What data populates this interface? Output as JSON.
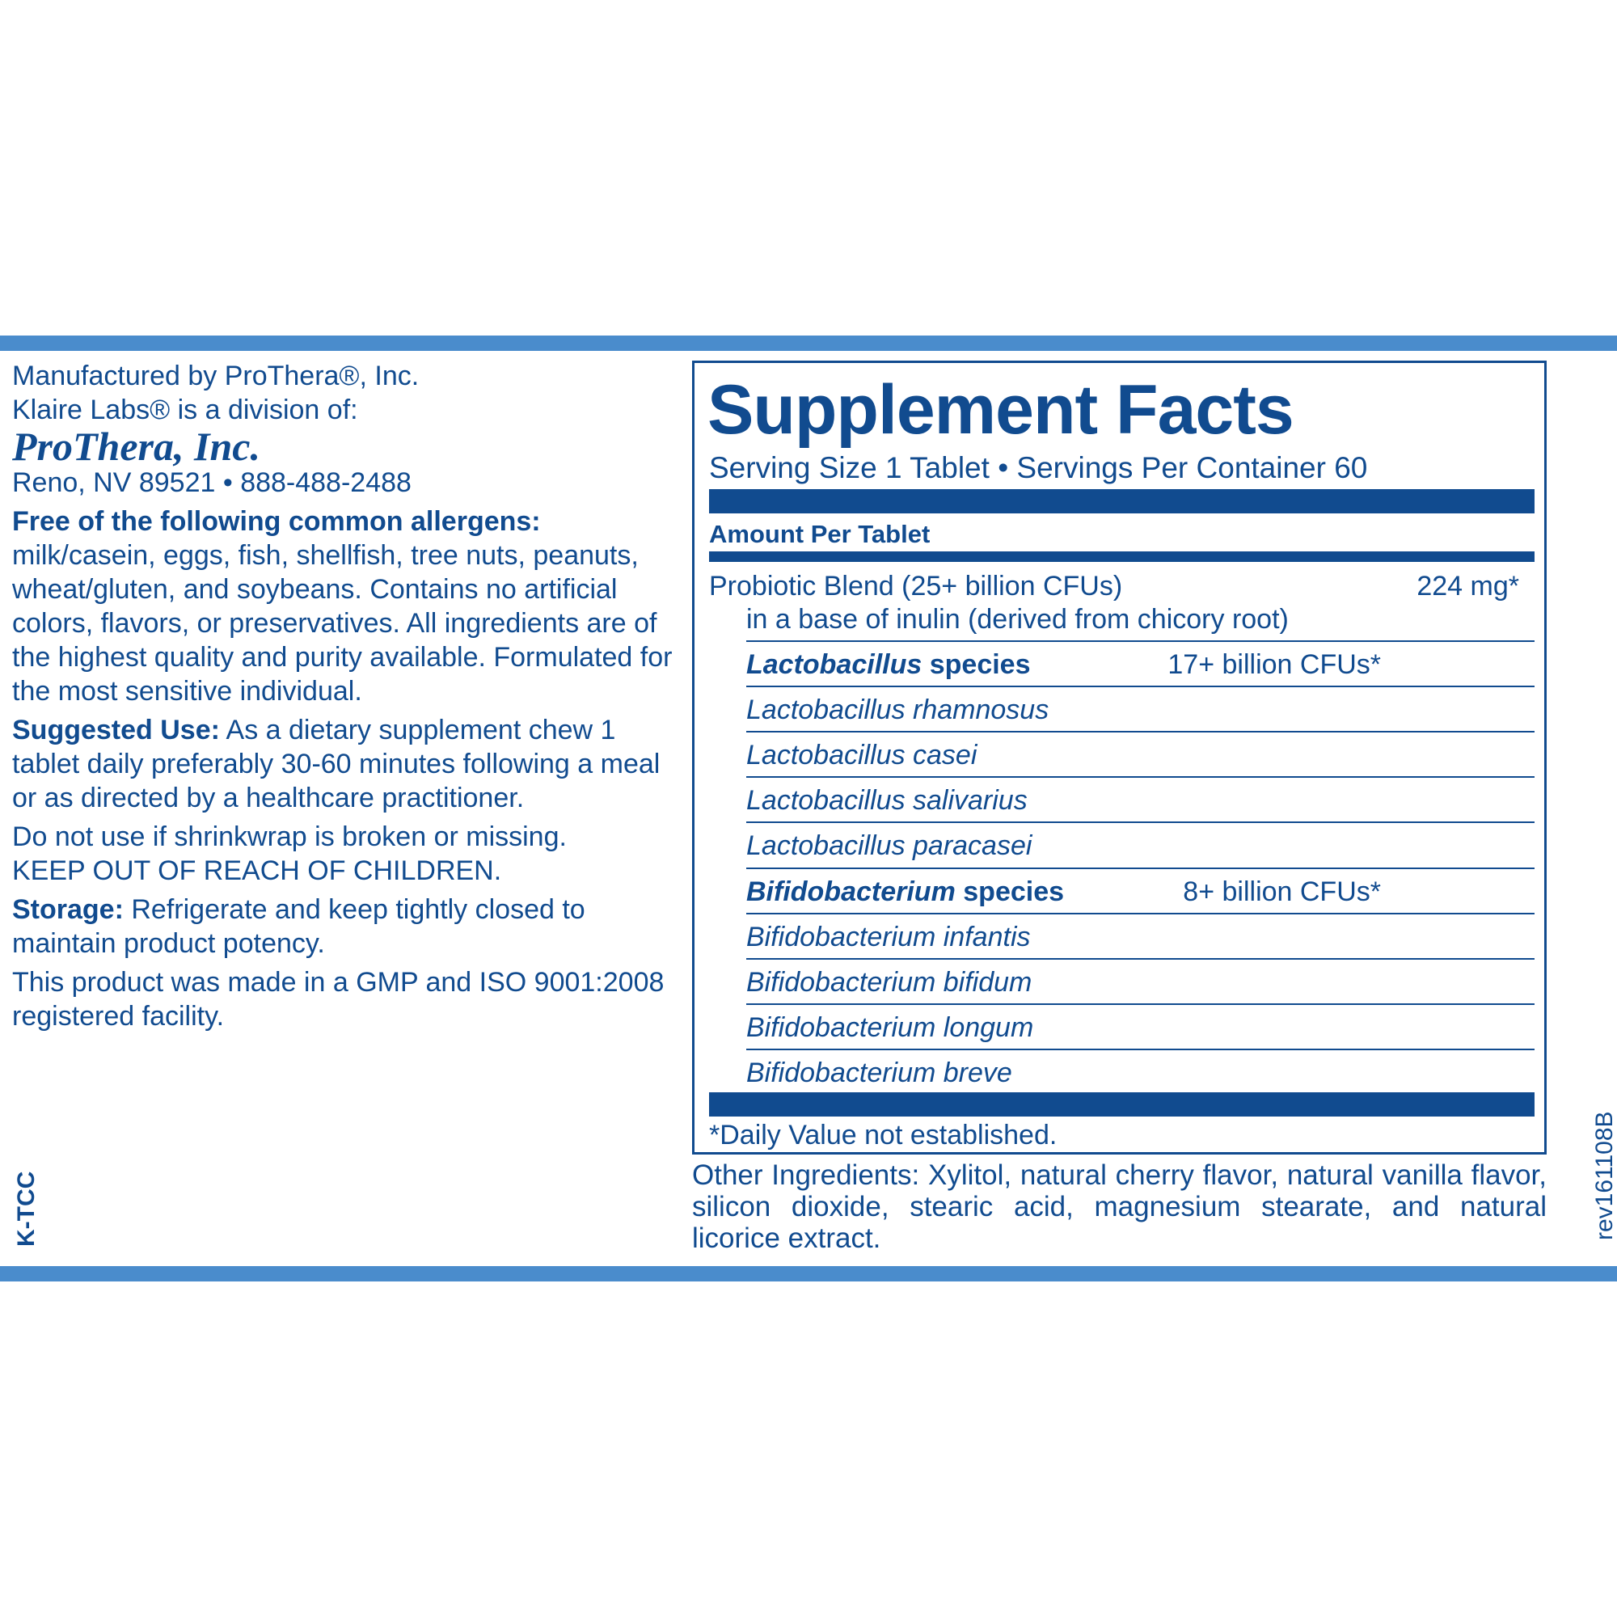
{
  "left": {
    "manufacturer": "Manufactured by ProThera®, Inc.",
    "division": "Klaire Labs® is a division of:",
    "logo": "ProThera, Inc.",
    "address": "Reno, NV 89521 • 888-488-2488",
    "allergens_heading": "Free of the following common allergens:",
    "allergens_text": "milk/casein, eggs, fish, shellfish, tree nuts, peanuts, wheat/gluten, and soybeans. Contains no artificial colors, flavors, or preservatives. All ingredients are of the highest quality and purity available. Formulated for the most sensitive individual.",
    "suggested_use_label": "Suggested Use:",
    "suggested_use_text": "As a dietary supplement chew 1 tablet daily preferably 30-60 minutes following a meal or as directed by a healthcare practitioner.",
    "warning": "Do not use if shrinkwrap is broken or missing.",
    "keep_out": "KEEP OUT OF REACH OF CHILDREN.",
    "storage_label": "Storage:",
    "storage_text": "Refrigerate and keep tightly closed to maintain product potency.",
    "gmp": "This product was made in a GMP and ISO 9001:2008 registered facility.",
    "code": "K-TCC"
  },
  "facts": {
    "title": "Supplement Facts",
    "serving": "Serving Size 1 Tablet • Servings Per Container 60",
    "amount_header": "Amount Per Tablet",
    "blend_name": "Probiotic Blend (25+ billion CFUs)",
    "blend_amount": "224 mg*",
    "blend_base": "in a base of inulin (derived from chicory root)",
    "rows": [
      {
        "genus": "Lactobacillus",
        "label": "species",
        "amount": "17+ billion CFUs*"
      },
      {
        "name": "Lactobacillus rhamnosus"
      },
      {
        "name": "Lactobacillus casei"
      },
      {
        "name": "Lactobacillus salivarius"
      },
      {
        "name": "Lactobacillus paracasei"
      },
      {
        "genus": "Bifidobacterium",
        "label": "species",
        "amount": "8+ billion CFUs*"
      },
      {
        "name": "Bifidobacterium infantis"
      },
      {
        "name": "Bifidobacterium bifidum"
      },
      {
        "name": "Bifidobacterium longum"
      },
      {
        "name": "Bifidobacterium breve"
      }
    ],
    "footnote": "*Daily Value not established."
  },
  "other_ingredients": "Other Ingredients: Xylitol, natural cherry flavor, natural vanilla flavor, silicon dioxide, stearic acid, magnesium stearate, and natural licorice extract.",
  "revision": "rev161108B"
}
